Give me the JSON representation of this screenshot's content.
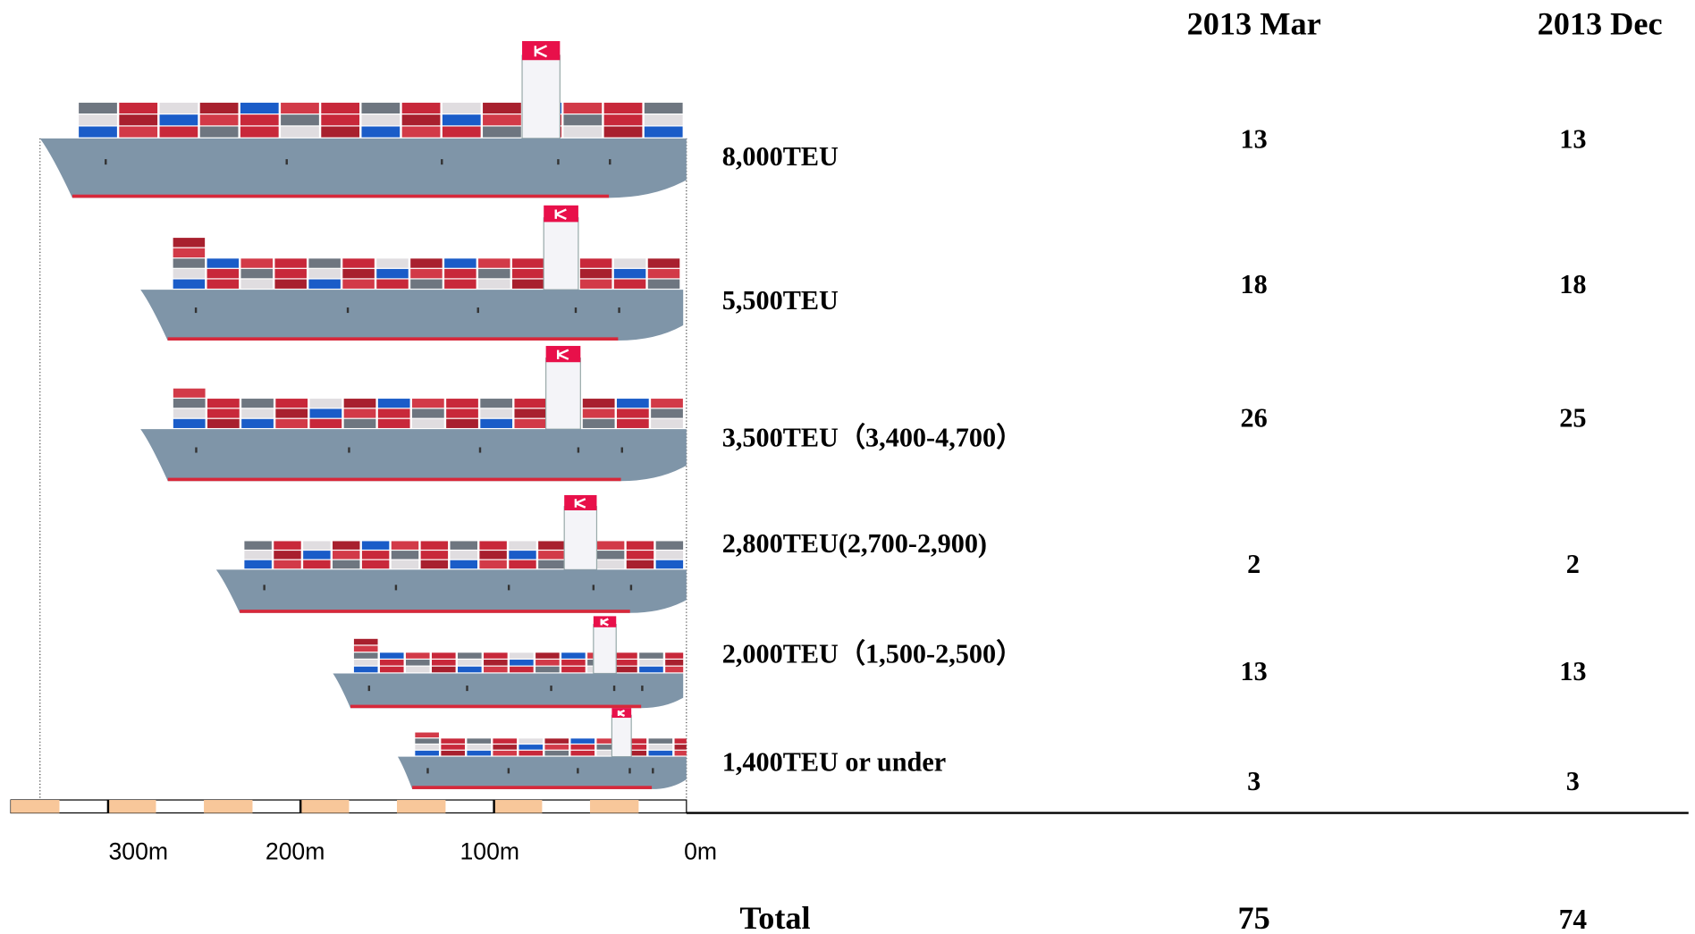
{
  "header": {
    "columns": [
      "2013 Mar",
      "2013 Dec"
    ]
  },
  "rows": [
    {
      "label": "8,000TEU",
      "mar": 13,
      "dec": 13
    },
    {
      "label": "5,500TEU",
      "mar": 18,
      "dec": 18
    },
    {
      "label": "3,500TEU（3,400-4,700）",
      "mar": 26,
      "dec": 25
    },
    {
      "label": "2,800TEU(2,700-2,900)",
      "mar": 2,
      "dec": 2
    },
    {
      "label": "2,000TEU（1,500-2,500）",
      "mar": 13,
      "dec": 13
    },
    {
      "label": "1,400TEU or under",
      "mar": 3,
      "dec": 3
    }
  ],
  "scale": {
    "labels": [
      "300m",
      "200m",
      "100m",
      "0m"
    ]
  },
  "total": {
    "label": "Total",
    "mar": 75,
    "dec": 74
  }
}
